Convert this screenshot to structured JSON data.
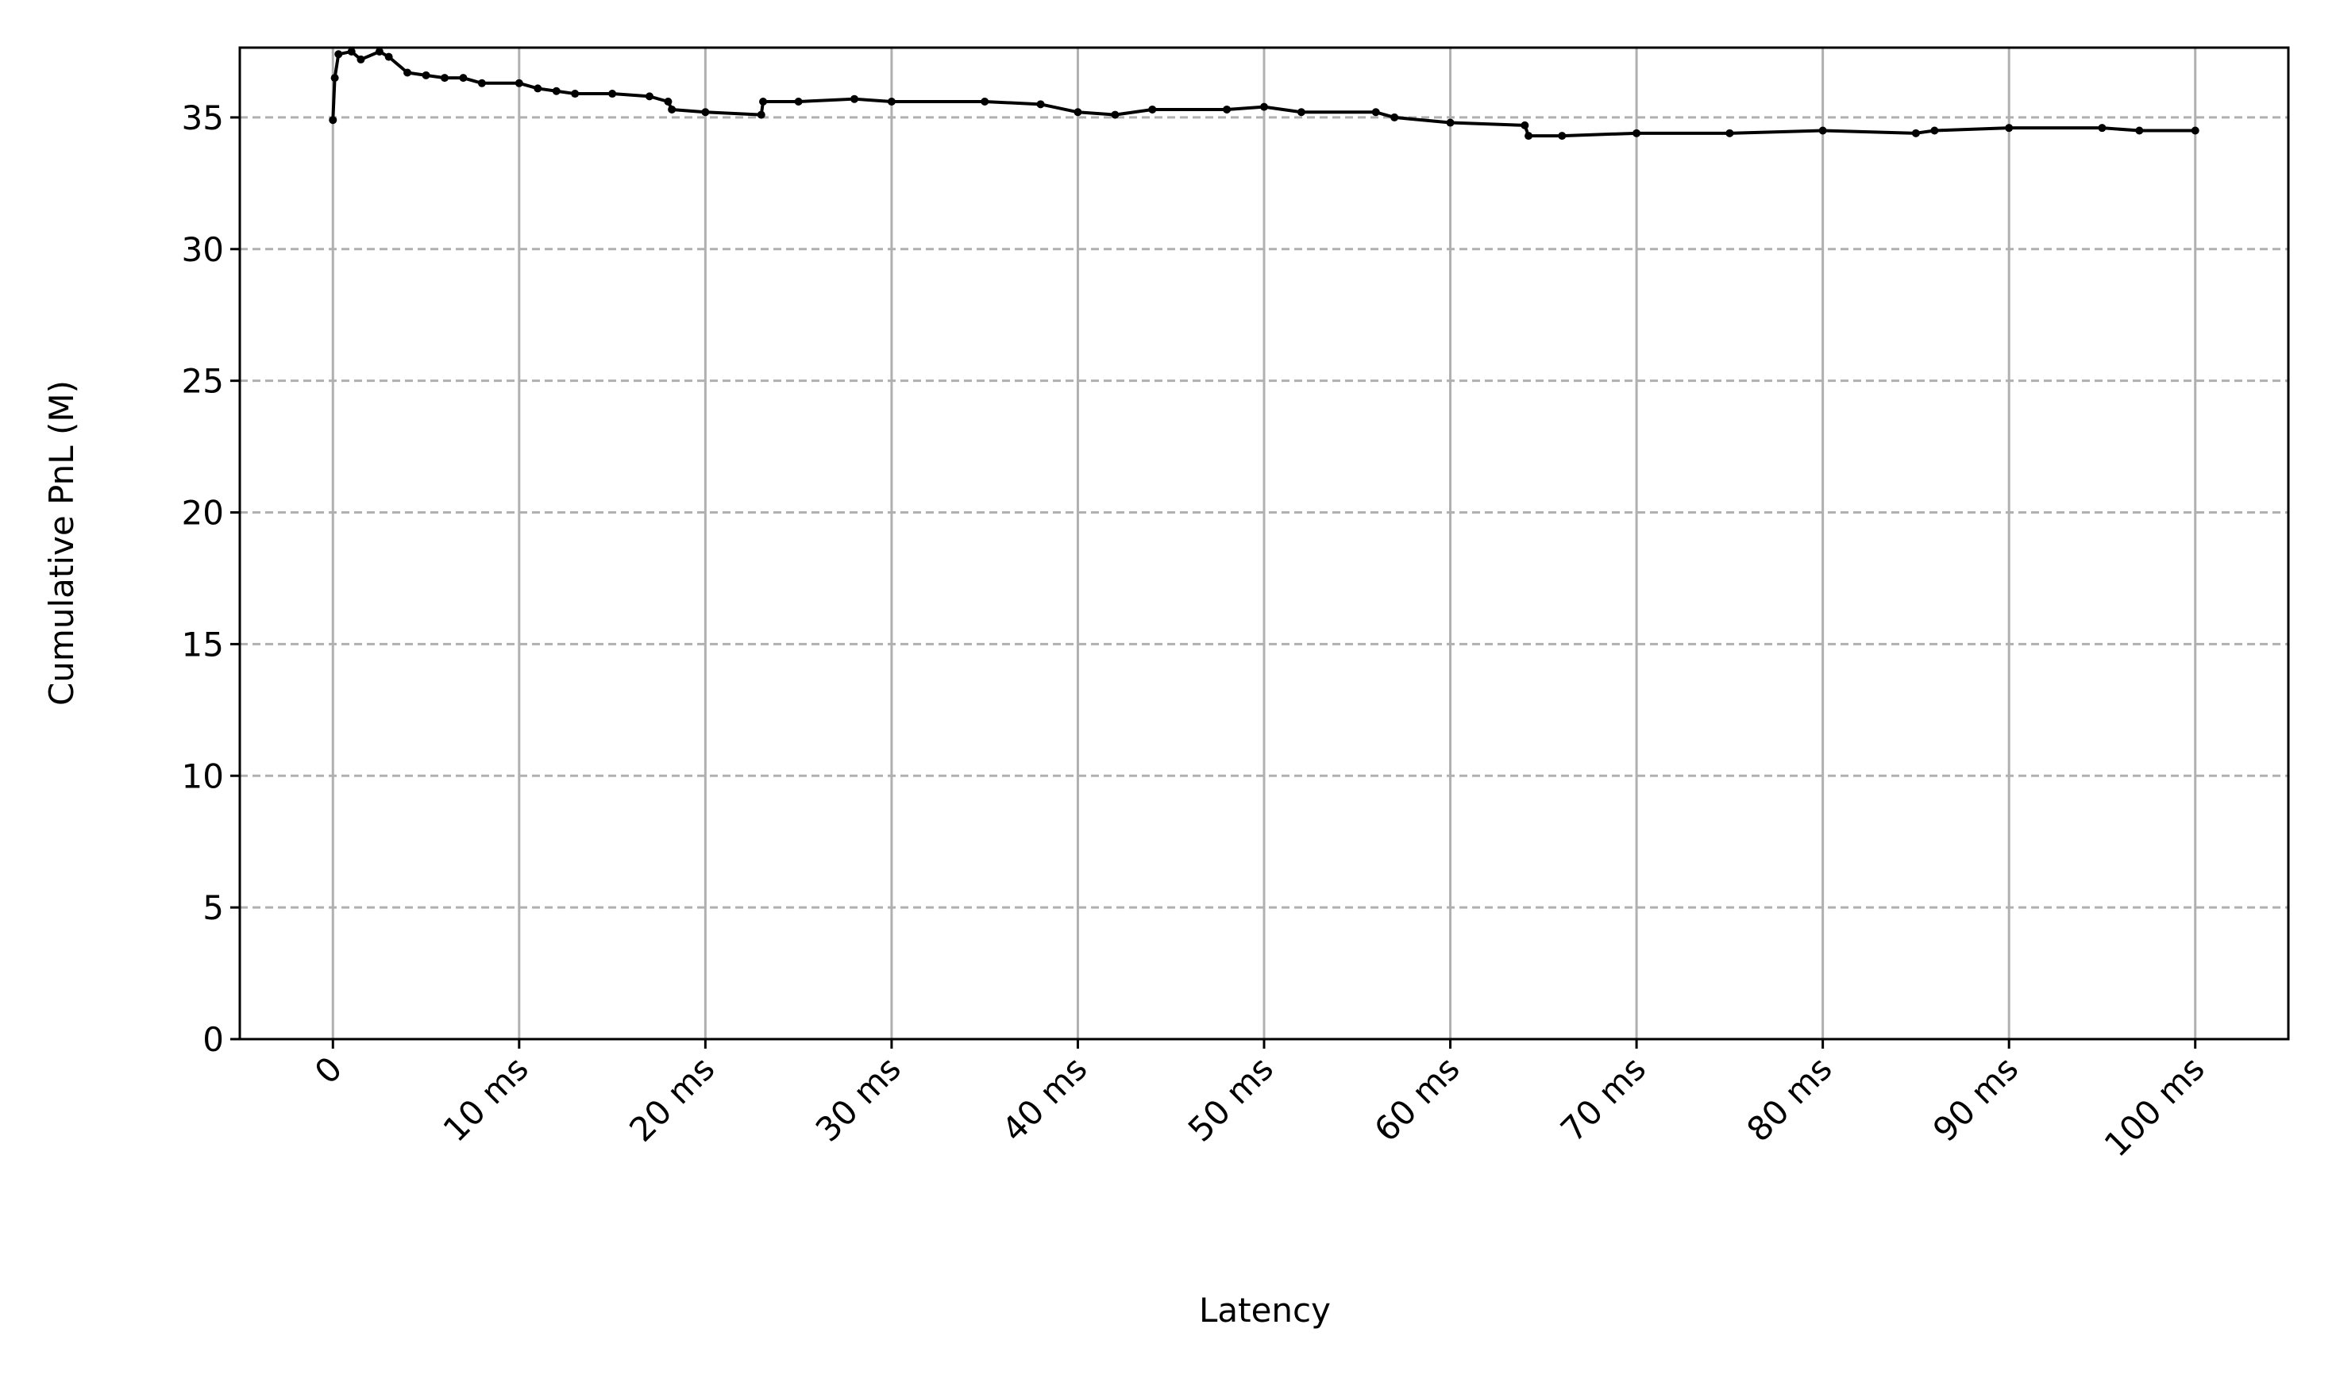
{
  "chart_data": {
    "type": "line",
    "xlabel": "Latency",
    "ylabel": "Cumulative PnL (M)",
    "x": [
      0,
      0.1,
      0.3,
      1,
      1.5,
      2.5,
      3,
      4,
      5,
      6,
      7,
      8,
      10,
      11,
      12,
      13,
      15,
      17,
      18,
      18.2,
      20,
      23,
      23.1,
      25,
      28,
      30,
      35,
      38,
      40,
      42,
      44,
      48,
      50,
      52,
      56,
      57,
      60,
      64,
      64.2,
      66,
      70,
      75,
      80,
      85,
      86,
      90,
      95,
      97,
      100
    ],
    "series": [
      {
        "color": "#000000",
        "values": [
          34.9,
          36.5,
          37.4,
          37.5,
          37.2,
          37.5,
          37.3,
          36.7,
          36.6,
          36.5,
          36.5,
          36.3,
          36.3,
          36.1,
          36.0,
          35.9,
          35.9,
          35.8,
          35.6,
          35.3,
          35.2,
          35.1,
          35.6,
          35.6,
          35.7,
          35.6,
          35.6,
          35.5,
          35.2,
          35.1,
          35.3,
          35.3,
          35.4,
          35.2,
          35.2,
          35.0,
          34.8,
          34.7,
          34.3,
          34.3,
          34.4,
          34.4,
          34.5,
          34.4,
          34.5,
          34.6,
          34.6,
          34.5,
          34.5
        ]
      }
    ],
    "xlim": [
      -5,
      105
    ],
    "ylim": [
      0,
      37.65
    ],
    "xticks": [
      0,
      {
        "value": 10,
        "label": "10 ms"
      },
      {
        "value": 20,
        "label": "20 ms"
      },
      {
        "value": 30,
        "label": "30 ms"
      },
      {
        "value": 40,
        "label": "40 ms"
      },
      {
        "value": 50,
        "label": "50 ms"
      },
      {
        "value": 60,
        "label": "60 ms"
      },
      {
        "value": 70,
        "label": "70 ms"
      },
      {
        "value": 80,
        "label": "80 ms"
      },
      {
        "value": 90,
        "label": "90 ms"
      },
      {
        "value": 100,
        "label": "100 ms"
      }
    ],
    "yticks": [
      0,
      5,
      10,
      15,
      20,
      25,
      30,
      35
    ],
    "grid": true
  }
}
